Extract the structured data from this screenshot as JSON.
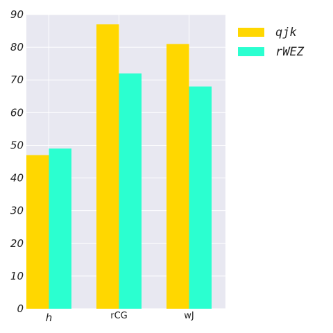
{
  "chart_data": {
    "type": "bar",
    "categories": [
      "h",
      "rCG",
      "wJ"
    ],
    "series": [
      {
        "name": "qjk",
        "values": [
          47,
          87,
          81
        ],
        "color": "#ffd700"
      },
      {
        "name": "rWEZ",
        "values": [
          49,
          72,
          68
        ],
        "color": "#2bffd0"
      }
    ],
    "ylim": [
      0,
      90
    ],
    "yticks": [
      "0",
      "10",
      "20",
      "30",
      "40",
      "50",
      "60",
      "70",
      "80",
      "90"
    ],
    "grid": true,
    "legend_position": "outside-top-right",
    "background": "#e8e8f1"
  }
}
